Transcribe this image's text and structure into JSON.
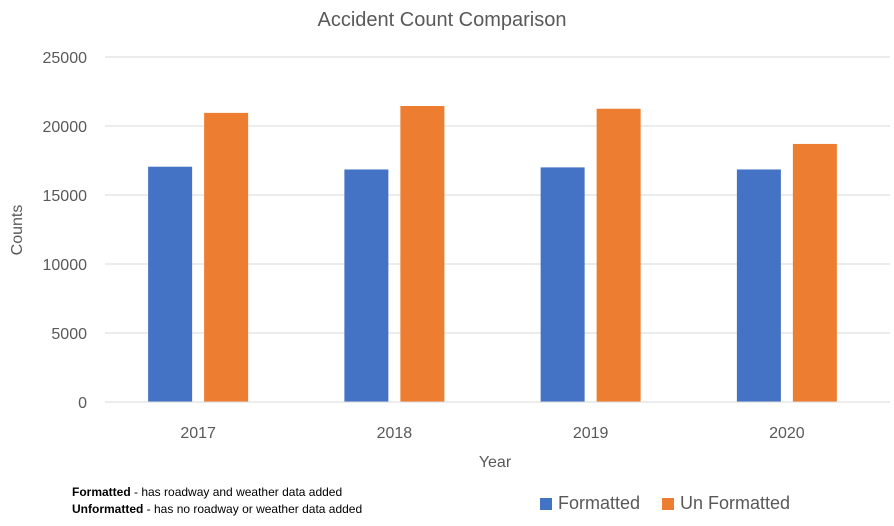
{
  "chart_data": {
    "type": "bar",
    "title": "Accident Count Comparison",
    "xlabel": "Year",
    "ylabel": "Counts",
    "categories": [
      "2017",
      "2018",
      "2019",
      "2020"
    ],
    "series": [
      {
        "name": "Formatted",
        "color": "#4472C4",
        "values": [
          17050,
          16850,
          17000,
          16850
        ]
      },
      {
        "name": "Un Formatted",
        "color": "#ED7D31",
        "values": [
          20950,
          21450,
          21250,
          18700
        ]
      }
    ],
    "ylim": [
      0,
      25000
    ],
    "yticks": [
      "0",
      "5000",
      "10000",
      "15000",
      "20000",
      "25000"
    ],
    "grid": true,
    "legend_position": "bottom-right"
  },
  "notes": [
    {
      "term": "Formatted",
      "text": " - has roadway and weather data added"
    },
    {
      "term": "Unformatted",
      "text": " - has no roadway or weather data added"
    }
  ]
}
